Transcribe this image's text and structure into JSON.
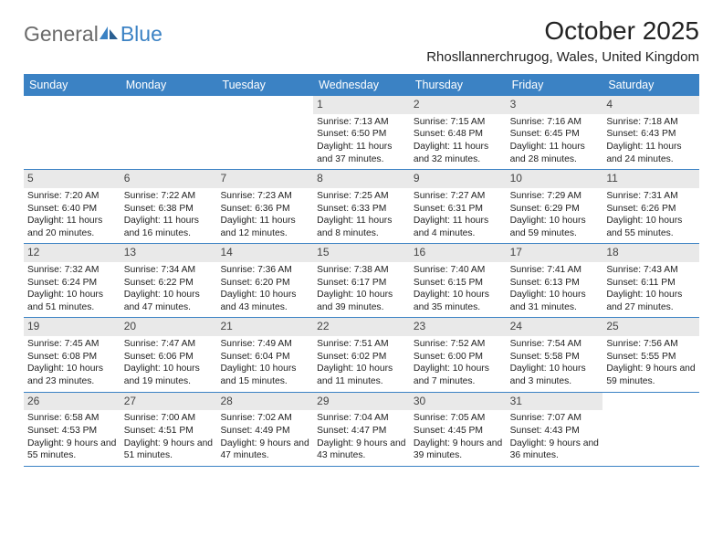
{
  "logo": {
    "word1": "General",
    "word2": "Blue"
  },
  "title": "October 2025",
  "location": "Rhosllannerchrugog, Wales, United Kingdom",
  "colors": {
    "brand_blue": "#3b82c4",
    "brand_gray": "#6a6a6a",
    "band_gray": "#e9e9e9",
    "text": "#222222",
    "white": "#ffffff"
  },
  "day_headers": [
    "Sunday",
    "Monday",
    "Tuesday",
    "Wednesday",
    "Thursday",
    "Friday",
    "Saturday"
  ],
  "weeks": [
    [
      null,
      null,
      null,
      {
        "n": "1",
        "sr": "7:13 AM",
        "ss": "6:50 PM",
        "dl": "11 hours and 37 minutes."
      },
      {
        "n": "2",
        "sr": "7:15 AM",
        "ss": "6:48 PM",
        "dl": "11 hours and 32 minutes."
      },
      {
        "n": "3",
        "sr": "7:16 AM",
        "ss": "6:45 PM",
        "dl": "11 hours and 28 minutes."
      },
      {
        "n": "4",
        "sr": "7:18 AM",
        "ss": "6:43 PM",
        "dl": "11 hours and 24 minutes."
      }
    ],
    [
      {
        "n": "5",
        "sr": "7:20 AM",
        "ss": "6:40 PM",
        "dl": "11 hours and 20 minutes."
      },
      {
        "n": "6",
        "sr": "7:22 AM",
        "ss": "6:38 PM",
        "dl": "11 hours and 16 minutes."
      },
      {
        "n": "7",
        "sr": "7:23 AM",
        "ss": "6:36 PM",
        "dl": "11 hours and 12 minutes."
      },
      {
        "n": "8",
        "sr": "7:25 AM",
        "ss": "6:33 PM",
        "dl": "11 hours and 8 minutes."
      },
      {
        "n": "9",
        "sr": "7:27 AM",
        "ss": "6:31 PM",
        "dl": "11 hours and 4 minutes."
      },
      {
        "n": "10",
        "sr": "7:29 AM",
        "ss": "6:29 PM",
        "dl": "10 hours and 59 minutes."
      },
      {
        "n": "11",
        "sr": "7:31 AM",
        "ss": "6:26 PM",
        "dl": "10 hours and 55 minutes."
      }
    ],
    [
      {
        "n": "12",
        "sr": "7:32 AM",
        "ss": "6:24 PM",
        "dl": "10 hours and 51 minutes."
      },
      {
        "n": "13",
        "sr": "7:34 AM",
        "ss": "6:22 PM",
        "dl": "10 hours and 47 minutes."
      },
      {
        "n": "14",
        "sr": "7:36 AM",
        "ss": "6:20 PM",
        "dl": "10 hours and 43 minutes."
      },
      {
        "n": "15",
        "sr": "7:38 AM",
        "ss": "6:17 PM",
        "dl": "10 hours and 39 minutes."
      },
      {
        "n": "16",
        "sr": "7:40 AM",
        "ss": "6:15 PM",
        "dl": "10 hours and 35 minutes."
      },
      {
        "n": "17",
        "sr": "7:41 AM",
        "ss": "6:13 PM",
        "dl": "10 hours and 31 minutes."
      },
      {
        "n": "18",
        "sr": "7:43 AM",
        "ss": "6:11 PM",
        "dl": "10 hours and 27 minutes."
      }
    ],
    [
      {
        "n": "19",
        "sr": "7:45 AM",
        "ss": "6:08 PM",
        "dl": "10 hours and 23 minutes."
      },
      {
        "n": "20",
        "sr": "7:47 AM",
        "ss": "6:06 PM",
        "dl": "10 hours and 19 minutes."
      },
      {
        "n": "21",
        "sr": "7:49 AM",
        "ss": "6:04 PM",
        "dl": "10 hours and 15 minutes."
      },
      {
        "n": "22",
        "sr": "7:51 AM",
        "ss": "6:02 PM",
        "dl": "10 hours and 11 minutes."
      },
      {
        "n": "23",
        "sr": "7:52 AM",
        "ss": "6:00 PM",
        "dl": "10 hours and 7 minutes."
      },
      {
        "n": "24",
        "sr": "7:54 AM",
        "ss": "5:58 PM",
        "dl": "10 hours and 3 minutes."
      },
      {
        "n": "25",
        "sr": "7:56 AM",
        "ss": "5:55 PM",
        "dl": "9 hours and 59 minutes."
      }
    ],
    [
      {
        "n": "26",
        "sr": "6:58 AM",
        "ss": "4:53 PM",
        "dl": "9 hours and 55 minutes."
      },
      {
        "n": "27",
        "sr": "7:00 AM",
        "ss": "4:51 PM",
        "dl": "9 hours and 51 minutes."
      },
      {
        "n": "28",
        "sr": "7:02 AM",
        "ss": "4:49 PM",
        "dl": "9 hours and 47 minutes."
      },
      {
        "n": "29",
        "sr": "7:04 AM",
        "ss": "4:47 PM",
        "dl": "9 hours and 43 minutes."
      },
      {
        "n": "30",
        "sr": "7:05 AM",
        "ss": "4:45 PM",
        "dl": "9 hours and 39 minutes."
      },
      {
        "n": "31",
        "sr": "7:07 AM",
        "ss": "4:43 PM",
        "dl": "9 hours and 36 minutes."
      },
      null
    ]
  ],
  "labels": {
    "sunrise": "Sunrise:",
    "sunset": "Sunset:",
    "daylight": "Daylight:"
  }
}
